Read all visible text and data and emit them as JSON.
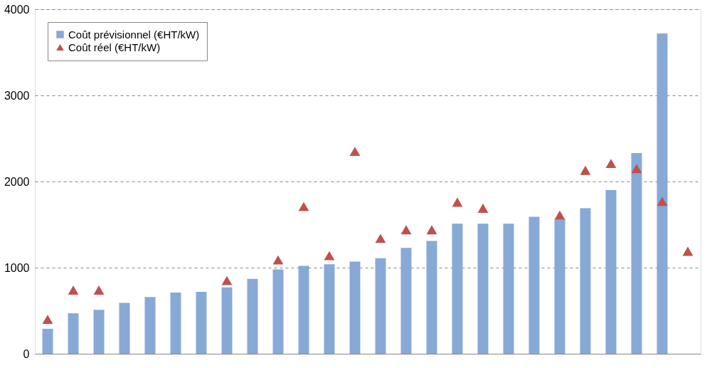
{
  "chart_data": {
    "type": "bar",
    "categories": [
      null,
      null,
      null,
      null,
      null,
      null,
      null,
      null,
      null,
      null,
      null,
      null,
      null,
      null,
      null,
      null,
      null,
      null,
      null,
      null,
      null,
      null,
      null,
      null,
      null,
      null
    ],
    "series": [
      {
        "name": "Coût prévisionnel (€HT/kW)",
        "color": "#87a9d6",
        "values": [
          290,
          470,
          510,
          590,
          660,
          710,
          720,
          770,
          870,
          980,
          1020,
          1040,
          1070,
          1110,
          1230,
          1310,
          1510,
          1510,
          1510,
          1590,
          1560,
          1690,
          1900,
          2330,
          3720,
          null
        ]
      },
      {
        "name": "Coût réel (€HT/kW)",
        "type": "scatter",
        "marker": "triangle",
        "color": "#c0504d",
        "values": [
          400,
          740,
          740,
          null,
          null,
          null,
          null,
          850,
          null,
          1090,
          1710,
          1140,
          2350,
          1340,
          1440,
          1440,
          1760,
          1690,
          null,
          null,
          1610,
          2130,
          2210,
          2150,
          1770,
          1190
        ]
      }
    ],
    "ylim": [
      0,
      4000
    ],
    "yticks": [
      0,
      1000,
      2000,
      3000,
      4000
    ],
    "grid": "y",
    "legend": "top left"
  }
}
